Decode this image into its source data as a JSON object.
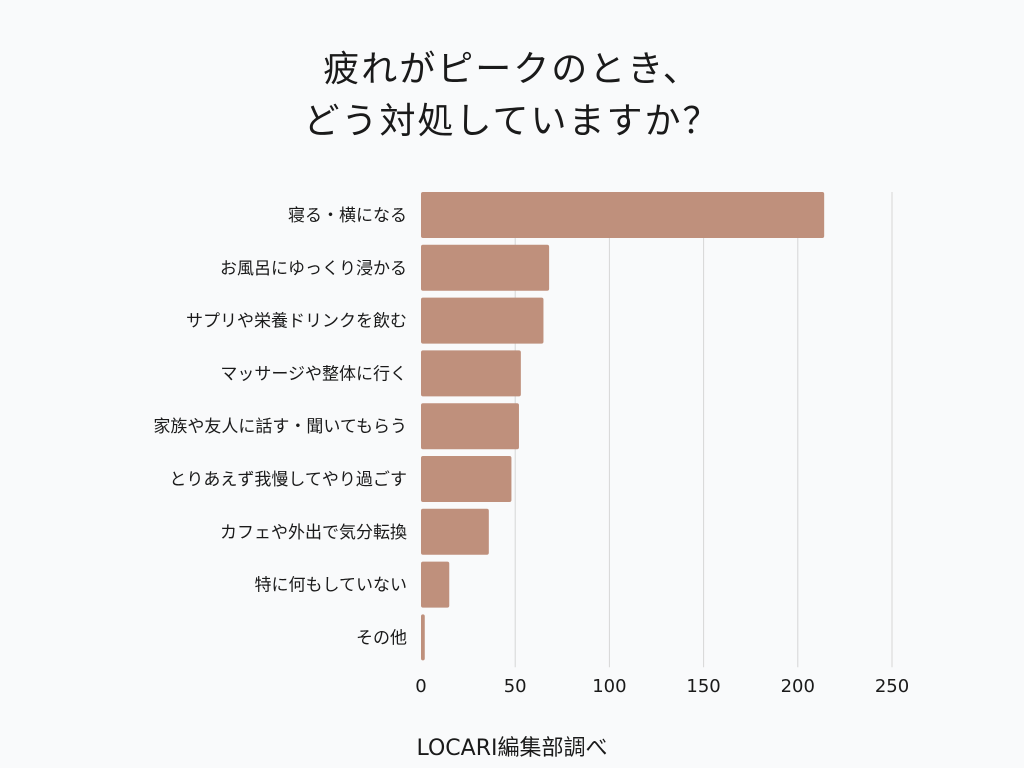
{
  "title_lines": [
    "疲れがピークのとき、",
    "どう対処していますか？"
  ],
  "source": "LOCARI編集部調べ",
  "colors": {
    "bar": "#bf907c",
    "grid": "#d6d6d6",
    "text": "#1a1a1a",
    "background": "#f9fafb"
  },
  "chart_data": {
    "type": "bar",
    "orientation": "horizontal",
    "title": "疲れがピークのとき、どう対処していますか？",
    "categories": [
      "寝る・横になる",
      "お風呂にゆっくり浸かる",
      "サプリや栄養ドリンクを飲む",
      "マッサージや整体に行く",
      "家族や友人に話す・聞いてもらう",
      "とりあえず我慢してやり過ごす",
      "カフェや外出で気分転換",
      "特に何もしていない",
      "その他"
    ],
    "values": [
      214,
      68,
      65,
      53,
      52,
      48,
      36,
      15,
      2
    ],
    "xlim": [
      0,
      250
    ],
    "xticks": [
      0,
      50,
      100,
      150,
      200,
      250
    ],
    "grid": "vertical",
    "legend": "none"
  }
}
